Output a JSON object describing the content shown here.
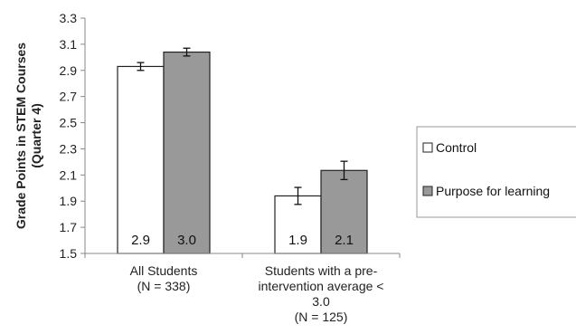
{
  "chart_data": {
    "type": "bar",
    "ylabel": [
      "Grade Points in STEM Courses",
      "(Quarter 4)"
    ],
    "ylim": [
      1.5,
      3.3
    ],
    "yticks": [
      "1.5",
      "1.7",
      "1.9",
      "2.1",
      "2.3",
      "2.5",
      "2.7",
      "2.9",
      "3.1",
      "3.3"
    ],
    "categories": [
      [
        "All Students",
        "(N = 338)"
      ],
      [
        "Students with a pre-",
        "intervention average <",
        "3.0",
        "(N = 125)"
      ]
    ],
    "series": [
      {
        "name": "Control",
        "color": "#ffffff",
        "values": [
          2.93,
          1.94
        ],
        "errors": [
          0.03,
          0.065
        ],
        "labels": [
          "2.9",
          "1.9"
        ]
      },
      {
        "name": "Purpose for learning",
        "color": "#999999",
        "values": [
          3.04,
          2.135
        ],
        "errors": [
          0.03,
          0.07
        ],
        "labels": [
          "3.0",
          "2.1"
        ]
      }
    ],
    "legend_position": "right",
    "grid": false
  }
}
